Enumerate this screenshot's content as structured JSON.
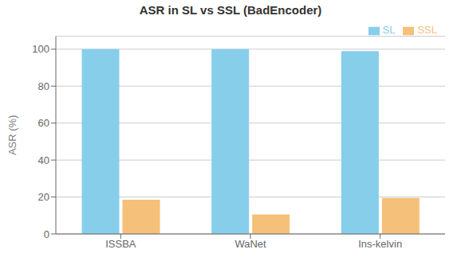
{
  "chart_data": {
    "type": "bar",
    "title": "ASR in SL vs SSL (BadEncoder)",
    "categories": [
      "ISSBA",
      "WaNet",
      "Ins-kelvin"
    ],
    "series": [
      {
        "name": "SL",
        "color": "#87CEEB",
        "values": [
          100,
          100,
          99
        ]
      },
      {
        "name": "SSL",
        "color": "#F5C07A",
        "values": [
          18.5,
          10.5,
          19.5
        ]
      }
    ],
    "ylabel": "ASR (%)",
    "ylim": [
      0,
      107
    ],
    "yticks": [
      0,
      20,
      40,
      60,
      80,
      100
    ],
    "grid": true,
    "legend": "upper right"
  }
}
